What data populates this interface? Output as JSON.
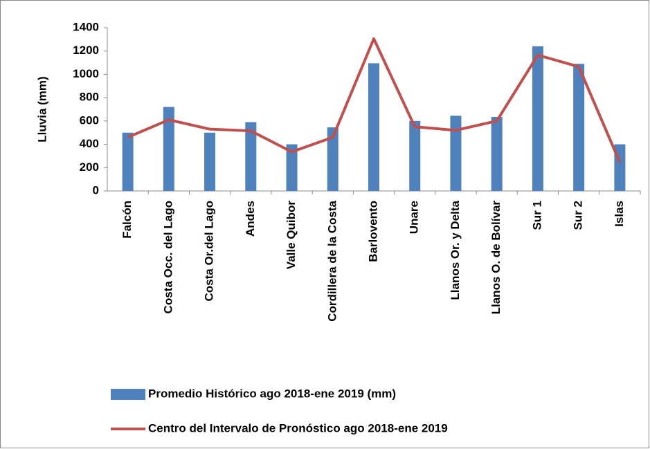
{
  "chart_data": {
    "type": "bar_line",
    "y_axis_label": "Lluvia (mm)",
    "categories": [
      "Falcón",
      "Costa Occ. del Lago",
      "Costa Or.del Lago",
      "Andes",
      "Valle Quibor",
      "Cordillera de la Costa",
      "Barlovento",
      "Unare",
      "Llanos Or. y Delta",
      "Llanos O. de Bolívar",
      "Sur 1",
      "Sur 2",
      "Islas"
    ],
    "series": [
      {
        "name": "Promedio Histórico ago 2018-ene 2019 (mm)",
        "type": "bar",
        "color": "#4f81bd",
        "values": [
          500,
          720,
          500,
          590,
          400,
          545,
          1095,
          600,
          645,
          635,
          1240,
          1090,
          400
        ]
      },
      {
        "name": "Centro del Intervalo de Pronóstico ago 2018-ene 2019",
        "type": "line",
        "color": "#c0504d",
        "values": [
          460,
          610,
          530,
          515,
          335,
          460,
          1305,
          550,
          520,
          600,
          1165,
          1065,
          245
        ]
      }
    ],
    "ylim": [
      0,
      1400
    ],
    "yticks": [
      0,
      200,
      400,
      600,
      800,
      1000,
      1200,
      1400
    ],
    "grid": false
  }
}
